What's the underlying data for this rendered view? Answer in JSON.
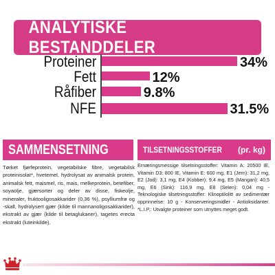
{
  "header": {
    "title": "ANALYTISKE BESTANDDELER"
  },
  "chart_data": {
    "type": "bar",
    "orientation": "horizontal",
    "categories": [
      "Proteiner",
      "Fett",
      "Råfiber",
      "NFE"
    ],
    "values": [
      34,
      12,
      9.8,
      31.5
    ],
    "value_labels": [
      "34%",
      "12%",
      "9.8%",
      "31.5%"
    ],
    "title": "ANALYTISKE BESTANDDELER",
    "xlim": [
      0,
      34
    ],
    "grid": false,
    "legend": "none",
    "bar_color": "#d93b8a"
  },
  "composition": {
    "heading": "SAMMENSETNING",
    "text": "Tørket fjørfeprotein, vegetabilske fibre, vegetabilsk proteinisolat*, hvetemel, hydrolysat av animalsk protein, animalsk fett, maismel, ris, mais, melkeprotein, betefiber, soyaolje, gjærsorter og deler av disse, fiskeolje, mineraler, fruktooligosakkarider (0,36 %), psylliumfrø og -skall, hydrolysert gjær (kilde til mannanoligosakkarider), ekstrakt av gjær (kilde til betaglukaner), tagetes erecta ekstrakt (luteinkilde)."
  },
  "additives": {
    "heading": "TILSETNINGSSTOFFER",
    "unit": "(pr. kg)",
    "text": "Ernæringsmessige tilsetningsstoffer: Vitamin A: 20500 IE, Vitamin D3: 800 IE, Vitamin E: 600 mg, E1 (Jern): 31,2 mg, E2 (Jod): 3,1 mg, E4 (Kobber): 9,4 mg, E5 (Mangan): 40,5 mg, E6 (Sink): 116,9 mg, E8 (Selen): 0,04 mg - Teknologiske tilsetningsstoffer: Klinoptilolitt av sedimentær opprinnelse: 10 g - Konserveringsmidler - Antioksidanter. *L.I.P.: Utvalgte proteiner som utnyttes meget godt."
  },
  "brand": {
    "logo": "royal-canin-crown-logo",
    "accent_color": "#d93b8a"
  }
}
